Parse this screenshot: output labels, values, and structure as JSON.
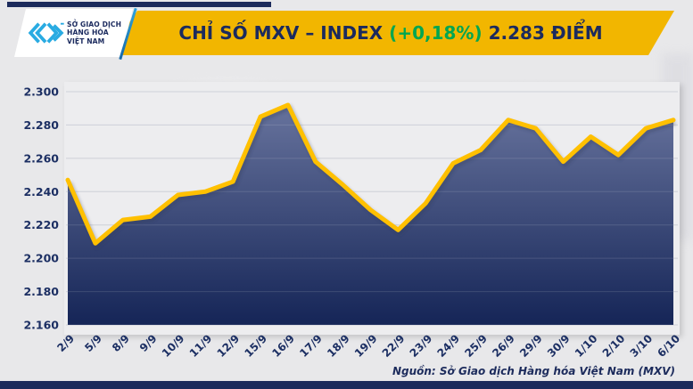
{
  "header": {
    "logo": {
      "icon": "mxv-chevrons",
      "line1": "SỞ GIAO DỊCH",
      "line2": "HÀNG HÓA",
      "line3": "VIỆT NAM"
    },
    "title": {
      "main": "CHỈ SỐ MXV – INDEX",
      "change": "(+0,18%)",
      "points": "2.283 ĐIỂM"
    }
  },
  "chart_data": {
    "type": "area",
    "title": "CHỈ SỐ MXV – INDEX (+0,18%) 2.283 ĐIỂM",
    "series_name": "MXV-Index",
    "categories": [
      "2/9",
      "5/9",
      "8/9",
      "9/9",
      "10/9",
      "11/9",
      "12/9",
      "15/9",
      "16/9",
      "17/9",
      "18/9",
      "19/9",
      "22/9",
      "23/9",
      "24/9",
      "25/9",
      "26/9",
      "29/9",
      "30/9",
      "1/10",
      "2/10",
      "3/10",
      "6/10"
    ],
    "values": [
      2.247,
      2.209,
      2.223,
      2.225,
      2.238,
      2.24,
      2.246,
      2.285,
      2.292,
      2.258,
      2.244,
      2.229,
      2.217,
      2.233,
      2.257,
      2.265,
      2.283,
      2.278,
      2.258,
      2.273,
      2.262,
      2.278,
      2.283
    ],
    "ylim": [
      2.16,
      2.3
    ],
    "ytick_step": 0.02,
    "ytick_labels": [
      "2.160",
      "2.180",
      "2.200",
      "2.220",
      "2.240",
      "2.260",
      "2.280",
      "2.300"
    ],
    "grid": true,
    "legend": "none",
    "line_color": "#FFC000",
    "area_gradient_top": "#67739D",
    "area_gradient_bottom": "#152557",
    "gridline_color": "#C8CBD4"
  },
  "footer": {
    "source": "Nguồn: Sở Giao dịch Hàng hóa Việt Nam (MXV)"
  },
  "colors": {
    "navy": "#1C2B5C",
    "gold": "#F2B600",
    "green": "#00A651",
    "cyan": "#29ABE2",
    "background": "#E8E8EA"
  }
}
